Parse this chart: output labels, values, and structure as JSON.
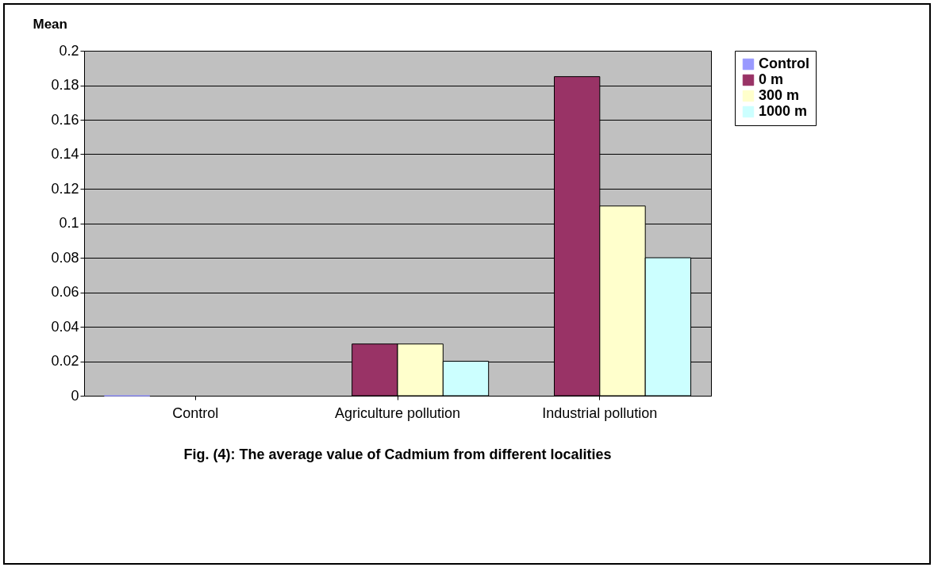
{
  "chart_data": {
    "type": "bar",
    "ylabel": "Mean",
    "categories": [
      "Control",
      "Agriculture pollution",
      "Industrial pollution"
    ],
    "series": [
      {
        "name": "Control",
        "color": "#9999ff",
        "values": [
          0,
          null,
          null
        ]
      },
      {
        "name": "0 m",
        "color": "#993366",
        "values": [
          null,
          0.03,
          0.185
        ]
      },
      {
        "name": "300 m",
        "color": "#ffffcc",
        "values": [
          null,
          0.03,
          0.11
        ]
      },
      {
        "name": "1000 m",
        "color": "#ccffff",
        "values": [
          null,
          0.02,
          0.08
        ]
      }
    ],
    "ylim": [
      0,
      0.2
    ],
    "yticks": [
      0,
      0.02,
      0.04,
      0.06,
      0.08,
      0.1,
      0.12,
      0.14,
      0.16,
      0.18,
      0.2
    ],
    "grid": "y",
    "legend": "right",
    "annotations": [
      "Fig. (4): The average value of Cadmium from different localities"
    ]
  }
}
